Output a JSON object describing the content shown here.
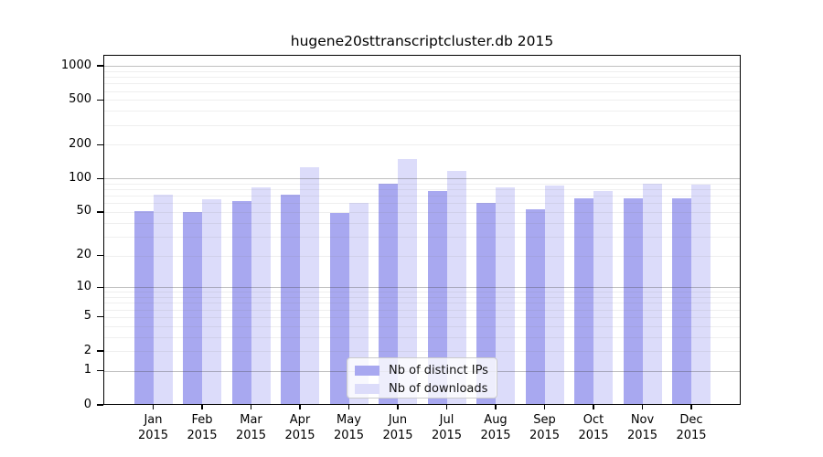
{
  "chart_data": {
    "type": "bar",
    "title": "hugene20sttranscriptcluster.db 2015",
    "categories": [
      "Jan",
      "Feb",
      "Mar",
      "Apr",
      "May",
      "Jun",
      "Jul",
      "Aug",
      "Sep",
      "Oct",
      "Nov",
      "Dec"
    ],
    "category_year": "2015",
    "series": [
      {
        "name": "Nb of distinct IPs",
        "color": "#a8a8f0",
        "values": [
          51,
          50,
          63,
          71,
          49,
          90,
          77,
          60,
          53,
          66,
          66,
          66
        ]
      },
      {
        "name": "Nb of downloads",
        "color": "#dcdcfa",
        "values": [
          72,
          65,
          84,
          125,
          61,
          148,
          118,
          83,
          87,
          78,
          90,
          88
        ]
      }
    ],
    "xlabel": "",
    "ylabel": "",
    "yaxis": {
      "scale": "log10(1+x)",
      "tick_values": [
        0,
        1,
        2,
        5,
        10,
        20,
        50,
        100,
        200,
        500,
        1000
      ],
      "range": [
        0,
        1250
      ]
    },
    "grid": "on",
    "legend_position": "bottom-center"
  }
}
